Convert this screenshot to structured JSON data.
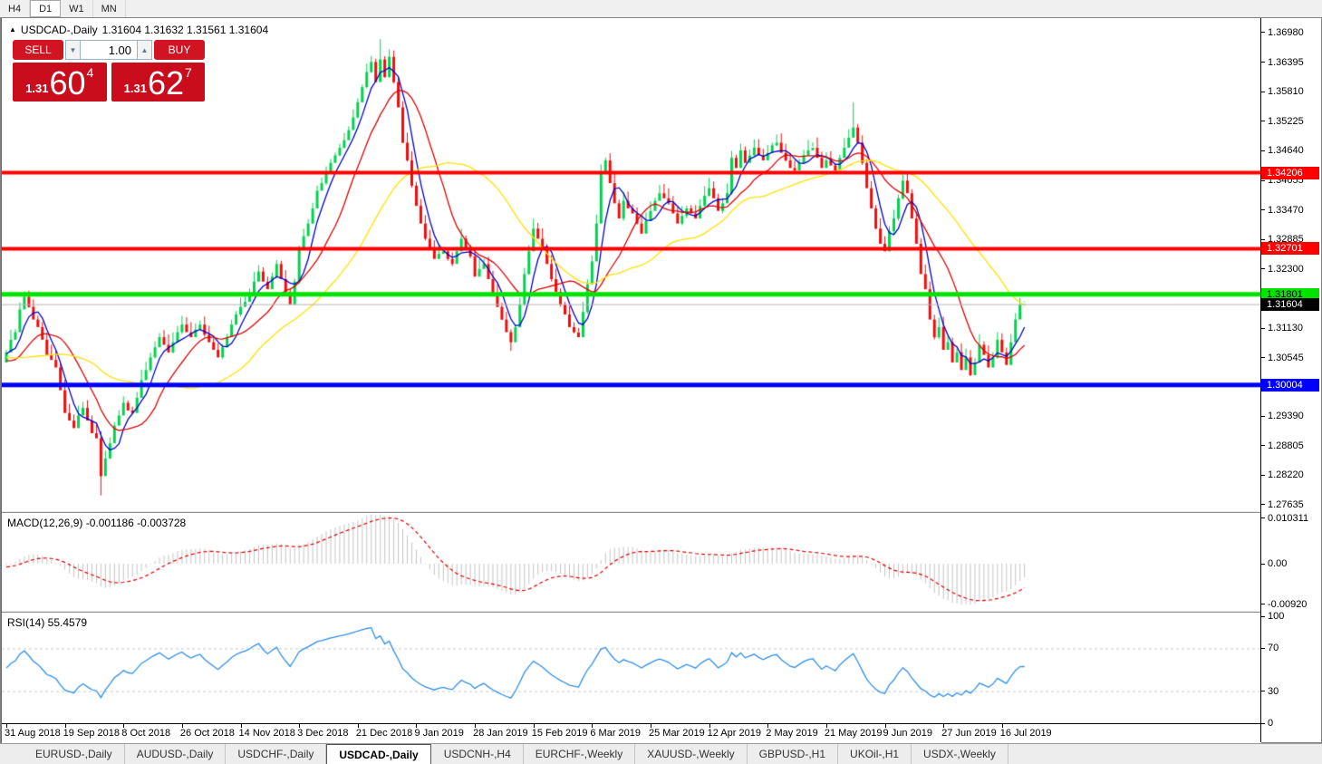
{
  "toolbar": {
    "timeframes": [
      {
        "label": "H4",
        "active": false
      },
      {
        "label": "D1",
        "active": true
      },
      {
        "label": "W1",
        "active": false
      },
      {
        "label": "MN",
        "active": false
      }
    ]
  },
  "chart_header": {
    "symbol": "USDCAD-,Daily",
    "ohlc": "1.31604 1.31632 1.31561 1.31604"
  },
  "trade_panel": {
    "sell_label": "SELL",
    "buy_label": "BUY",
    "volume": "1.00",
    "sell_price": {
      "small": "1.31",
      "big": "60",
      "sup": "4"
    },
    "buy_price": {
      "small": "1.31",
      "big": "62",
      "sup": "7"
    }
  },
  "price_axis": {
    "ticks": [
      "1.36980",
      "1.36395",
      "1.35810",
      "1.35225",
      "1.34640",
      "1.34055",
      "1.33470",
      "1.32885",
      "1.32300",
      "1.31715",
      "1.31130",
      "1.30545",
      "1.29960",
      "1.29390",
      "1.28805",
      "1.28220",
      "1.27635"
    ]
  },
  "hlines": [
    {
      "price": 1.34206,
      "label": "1.34206",
      "color": "#ff0000",
      "text_color": "#ffffff",
      "thickness": 4
    },
    {
      "price": 1.32701,
      "label": "1.32701",
      "color": "#ff0000",
      "text_color": "#ffffff",
      "thickness": 4
    },
    {
      "price": 1.31801,
      "label": "1.31801",
      "color": "#00e400",
      "text_color": "#000000",
      "thickness": 5
    },
    {
      "price": 1.30004,
      "label": "1.30004",
      "color": "#0000ff",
      "text_color": "#ffffff",
      "thickness": 5
    }
  ],
  "current_price": {
    "label": "1.31604",
    "value": 1.31604,
    "line_color": "#b4b4b4",
    "badge_bg": "#000000",
    "badge_text": "#ffffff"
  },
  "macd_panel": {
    "label": "MACD(12,26,9) -0.001186 -0.003728",
    "ticks": [
      {
        "v": 0.010311,
        "t": "0.010311"
      },
      {
        "v": 0.0,
        "t": "0.00"
      },
      {
        "v": -0.0092,
        "t": "-0.00920"
      }
    ],
    "hist_color": "#c4c4c4",
    "signal_color": "#e00000"
  },
  "rsi_panel": {
    "label": "RSI(14) 55.4579",
    "ticks": [
      {
        "v": 100,
        "t": "100"
      },
      {
        "v": 70,
        "t": "70"
      },
      {
        "v": 30,
        "t": "30"
      },
      {
        "v": 0,
        "t": "0"
      }
    ],
    "levels": [
      30,
      70
    ],
    "line_color": "#2f8fe8",
    "level_color": "#c9c9c9"
  },
  "bottom_tabs": [
    {
      "label": "EURUSD-,Daily",
      "active": false
    },
    {
      "label": "AUDUSD-,Daily",
      "active": false
    },
    {
      "label": "USDCHF-,Daily",
      "active": false
    },
    {
      "label": "USDCAD-,Daily",
      "active": true
    },
    {
      "label": "USDCNH-,H4",
      "active": false
    },
    {
      "label": "EURCHF-,Weekly",
      "active": false
    },
    {
      "label": "XAUUSD-,Weekly",
      "active": false
    },
    {
      "label": "GBPUSD-,H1",
      "active": false
    },
    {
      "label": "UKOil-,H1",
      "active": false
    },
    {
      "label": "USDX-,Weekly",
      "active": false
    }
  ],
  "chart_data": {
    "type": "candlestick",
    "symbol": "USDCAD",
    "timeframe": "Daily",
    "up_color": "#00d24e",
    "down_color": "#ee0d0d",
    "price_range": {
      "top": 1.37267,
      "bottom": 1.27525
    },
    "date_labels": [
      {
        "bar": 0,
        "label": "31 Aug 2018"
      },
      {
        "bar": 13,
        "label": "19 Sep 2018"
      },
      {
        "bar": 26,
        "label": "8 Oct 2018"
      },
      {
        "bar": 39,
        "label": "26 Oct 2018"
      },
      {
        "bar": 52,
        "label": "14 Nov 2018"
      },
      {
        "bar": 65,
        "label": "3 Dec 2018"
      },
      {
        "bar": 78,
        "label": "21 Dec 2018"
      },
      {
        "bar": 91,
        "label": "9 Jan 2019"
      },
      {
        "bar": 104,
        "label": "28 Jan 2019"
      },
      {
        "bar": 117,
        "label": "15 Feb 2019"
      },
      {
        "bar": 130,
        "label": "6 Mar 2019"
      },
      {
        "bar": 143,
        "label": "25 Mar 2019"
      },
      {
        "bar": 156,
        "label": "12 Apr 2019"
      },
      {
        "bar": 169,
        "label": "2 May 2019"
      },
      {
        "bar": 182,
        "label": "21 May 2019"
      },
      {
        "bar": 195,
        "label": "9 Jun 2019"
      },
      {
        "bar": 208,
        "label": "27 Jun 2019"
      },
      {
        "bar": 221,
        "label": "16 Jul 2019"
      }
    ],
    "warmup_closes": [
      1.313,
      1.3125,
      1.311,
      1.3095,
      1.308,
      1.306,
      1.3085,
      1.3105,
      1.312,
      1.314,
      1.3155,
      1.313,
      1.3105,
      1.3085,
      1.306,
      1.304,
      1.302,
      1.3,
      1.298,
      1.296,
      1.2975,
      1.2995,
      1.3015,
      1.3035,
      1.305,
      1.307,
      1.309,
      1.311,
      1.3095,
      1.3075,
      1.3055,
      1.3035,
      1.3015,
      1.2995,
      1.3015,
      1.304,
      1.306,
      1.308,
      1.306,
      1.3045
    ],
    "closes": [
      1.3065,
      1.309,
      1.3105,
      1.315,
      1.3175,
      1.3155,
      1.313,
      1.3115,
      1.309,
      1.306,
      1.305,
      1.3035,
      1.299,
      1.2945,
      1.293,
      1.2915,
      1.294,
      1.2955,
      1.293,
      1.2905,
      1.2895,
      1.282,
      1.2855,
      1.2885,
      1.292,
      1.294,
      1.2965,
      1.295,
      1.2945,
      1.2975,
      1.301,
      1.303,
      1.3055,
      1.3075,
      1.3095,
      1.308,
      1.3065,
      1.3085,
      1.3105,
      1.312,
      1.3105,
      1.3095,
      1.311,
      1.312,
      1.31,
      1.3085,
      1.307,
      1.3055,
      1.3075,
      1.3095,
      1.312,
      1.314,
      1.3155,
      1.3165,
      1.318,
      1.3205,
      1.3225,
      1.3205,
      1.319,
      1.3215,
      1.324,
      1.321,
      1.3185,
      1.316,
      1.3205,
      1.327,
      1.3295,
      1.332,
      1.335,
      1.3385,
      1.34,
      1.342,
      1.344,
      1.3455,
      1.347,
      1.3485,
      1.3505,
      1.353,
      1.356,
      1.359,
      1.362,
      1.364,
      1.36,
      1.3645,
      1.361,
      1.365,
      1.36,
      1.355,
      1.348,
      1.3445,
      1.3395,
      1.3355,
      1.332,
      1.329,
      1.327,
      1.325,
      1.326,
      1.3265,
      1.325,
      1.324,
      1.3265,
      1.329,
      1.327,
      1.3255,
      1.3215,
      1.323,
      1.324,
      1.321,
      1.318,
      1.3155,
      1.313,
      1.3105,
      1.3085,
      1.3115,
      1.316,
      1.322,
      1.3265,
      1.331,
      1.329,
      1.327,
      1.324,
      1.321,
      1.3185,
      1.316,
      1.314,
      1.3115,
      1.3105,
      1.3095,
      1.3145,
      1.32,
      1.3245,
      1.332,
      1.342,
      1.3445,
      1.34,
      1.336,
      1.333,
      1.3365,
      1.335,
      1.334,
      1.332,
      1.33,
      1.3325,
      1.3345,
      1.3365,
      1.338,
      1.337,
      1.336,
      1.334,
      1.332,
      1.3335,
      1.335,
      1.334,
      1.333,
      1.3355,
      1.3375,
      1.339,
      1.337,
      1.3345,
      1.336,
      1.338,
      1.345,
      1.343,
      1.3465,
      1.344,
      1.3455,
      1.347,
      1.3455,
      1.3445,
      1.346,
      1.3475,
      1.348,
      1.346,
      1.3445,
      1.343,
      1.3425,
      1.344,
      1.3455,
      1.3465,
      1.347,
      1.345,
      1.343,
      1.3445,
      1.3435,
      1.3425,
      1.345,
      1.347,
      1.349,
      1.351,
      1.348,
      1.344,
      1.339,
      1.335,
      1.331,
      1.328,
      1.3265,
      1.3305,
      1.333,
      1.337,
      1.3405,
      1.338,
      1.333,
      1.328,
      1.322,
      1.319,
      1.313,
      1.3095,
      1.3115,
      1.307,
      1.3085,
      1.3045,
      1.3065,
      1.303,
      1.3055,
      1.302,
      1.3045,
      1.308,
      1.306,
      1.3035,
      1.3055,
      1.309,
      1.3065,
      1.304,
      1.3085,
      1.313,
      1.316,
      1.31604
    ],
    "wick_overrides": {
      "21": {
        "low": 1.2782
      },
      "83": {
        "high": 1.3685
      },
      "85": {
        "high": 1.3665
      },
      "112": {
        "low": 1.3068
      },
      "188": {
        "high": 1.356
      },
      "214": {
        "low": 1.3018
      }
    },
    "moving_averages": [
      {
        "name": "fast",
        "period": 5,
        "color": "#0000c8"
      },
      {
        "name": "mid",
        "period": 13,
        "color": "#dc0404"
      },
      {
        "name": "slow",
        "period": 34,
        "color": "#ffe100"
      }
    ],
    "indicators": {
      "macd": {
        "fast": 12,
        "slow": 26,
        "signal": 9,
        "value": -0.001186,
        "signal_value": -0.003728,
        "axis_max": 0.010311,
        "axis_min": -0.0092
      },
      "rsi": {
        "period": 14,
        "value": 55.4579,
        "axis": [
          0,
          100
        ],
        "levels": [
          30,
          70
        ]
      }
    }
  }
}
